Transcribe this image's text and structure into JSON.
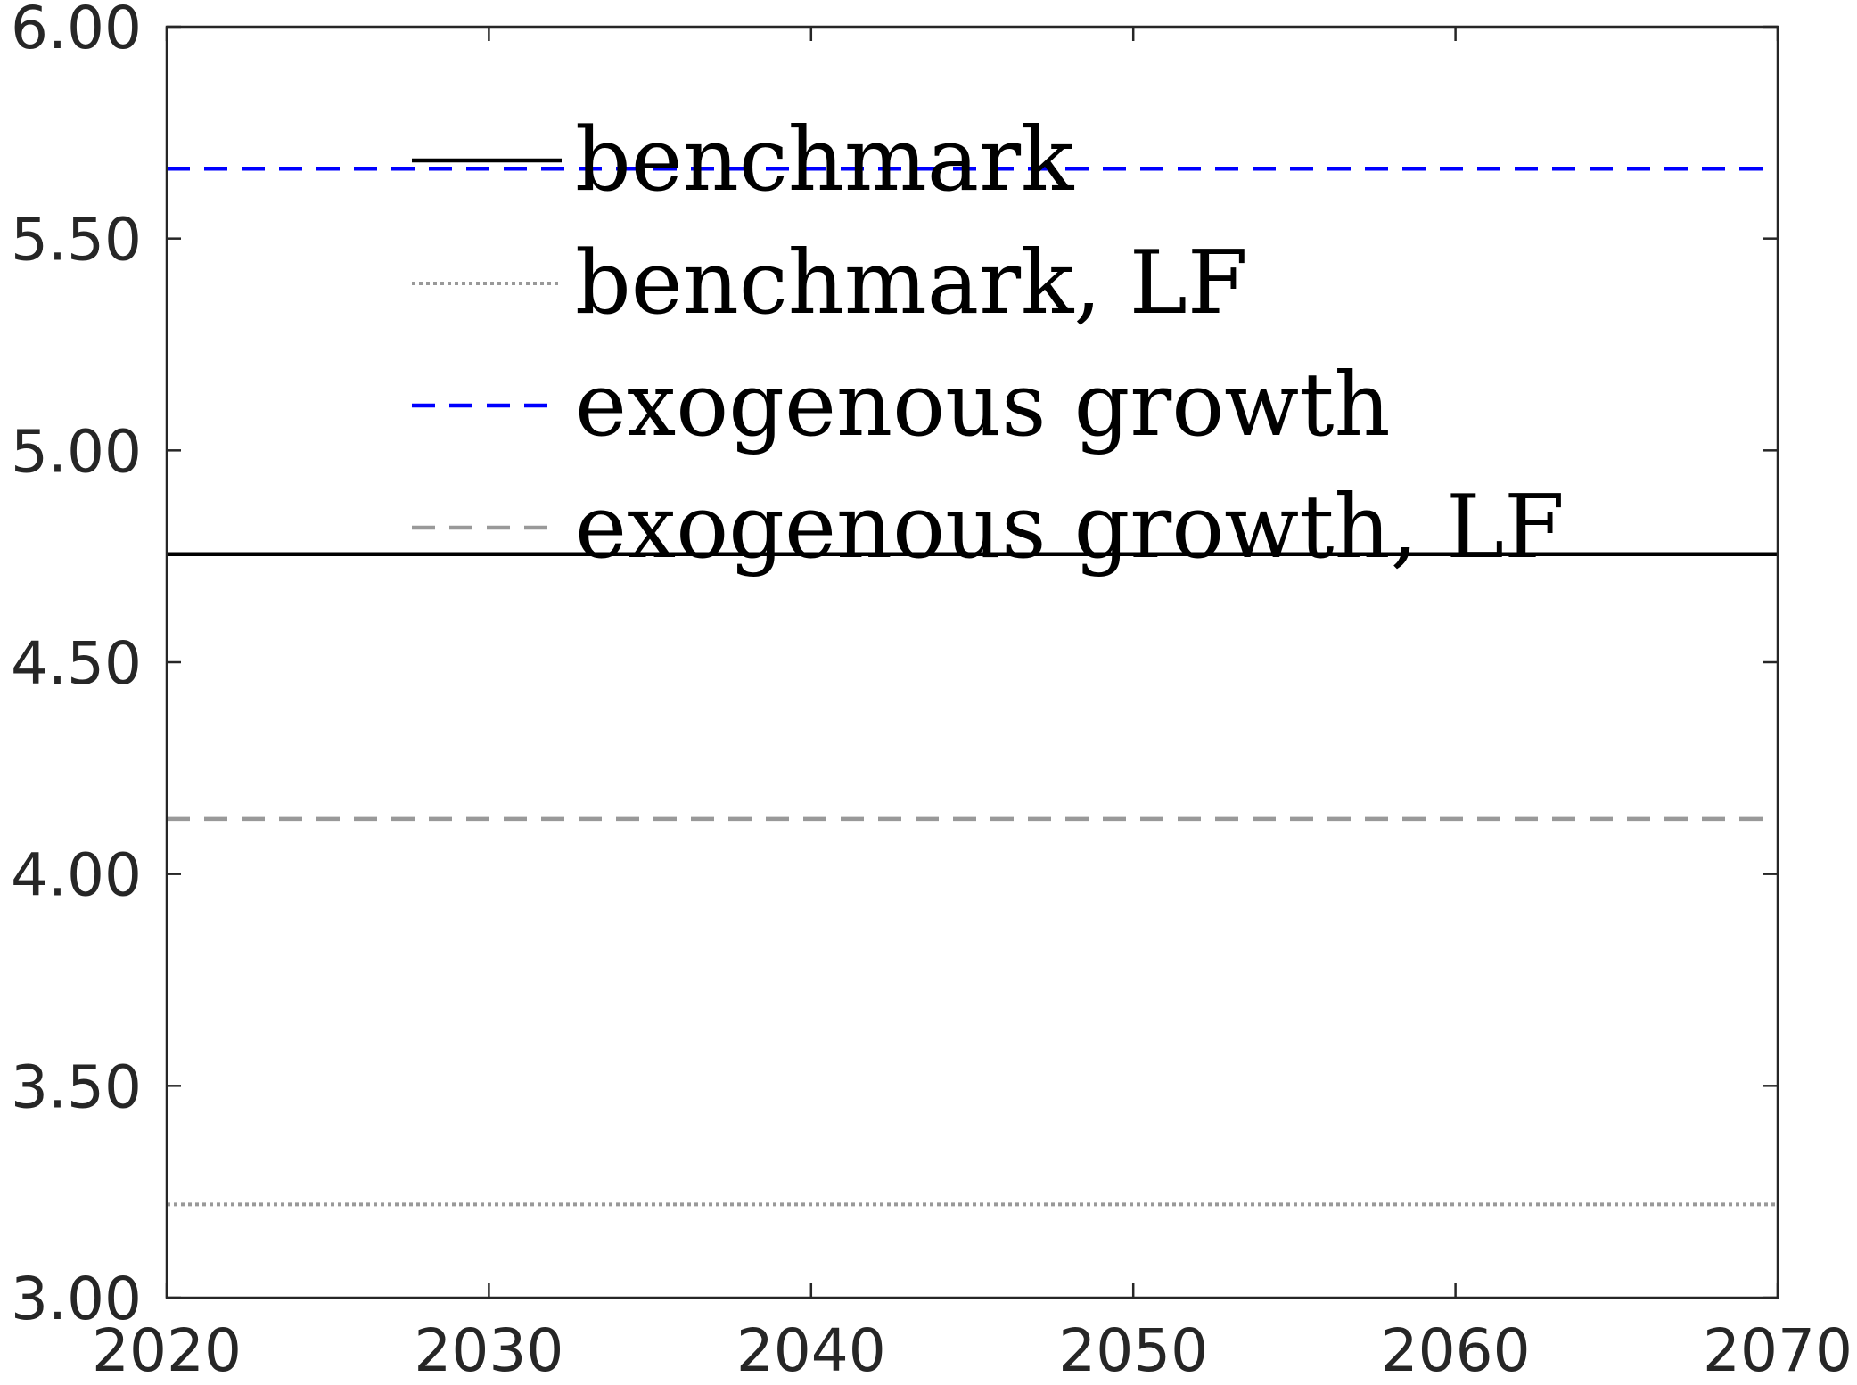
{
  "chart_data": {
    "type": "line",
    "title": "",
    "xlabel": "",
    "ylabel": "",
    "xlim": [
      2020,
      2070
    ],
    "ylim": [
      3.0,
      6.0
    ],
    "x_ticks": [
      2020,
      2030,
      2040,
      2050,
      2060,
      2070
    ],
    "x_tick_labels": [
      "2020",
      "2030",
      "2040",
      "2050",
      "2060",
      "2070"
    ],
    "y_ticks": [
      3.0,
      3.5,
      4.0,
      4.5,
      5.0,
      5.5,
      6.0
    ],
    "y_tick_labels": [
      "3.00",
      "3.50",
      "4.00",
      "4.50",
      "5.00",
      "5.50",
      "6.00"
    ],
    "grid": false,
    "legend_position": "top-left",
    "x": [
      2020,
      2070
    ],
    "series": [
      {
        "name": "benchmark",
        "values": [
          4.755,
          4.755
        ],
        "color": "#000000",
        "line_style": "solid"
      },
      {
        "name": "benchmark, LF",
        "values": [
          3.22,
          3.22
        ],
        "color": "#999999",
        "line_style": "dotted"
      },
      {
        "name": "exogenous growth",
        "values": [
          5.665,
          5.665
        ],
        "color": "#0000ff",
        "line_style": "dashed"
      },
      {
        "name": "exogenous growth, LF",
        "values": [
          4.13,
          4.13
        ],
        "color": "#999999",
        "line_style": "dashed"
      }
    ]
  }
}
